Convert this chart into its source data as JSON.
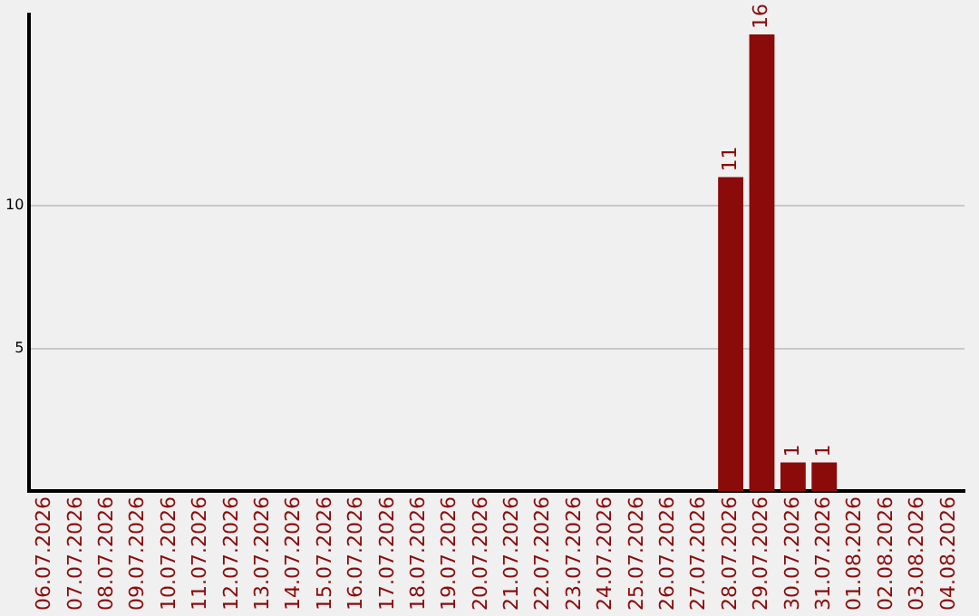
{
  "chart_data": {
    "type": "bar",
    "categories": [
      "06.07.2026",
      "07.07.2026",
      "08.07.2026",
      "09.07.2026",
      "10.07.2026",
      "11.07.2026",
      "12.07.2026",
      "13.07.2026",
      "14.07.2026",
      "15.07.2026",
      "16.07.2026",
      "17.07.2026",
      "18.07.2026",
      "19.07.2026",
      "20.07.2026",
      "21.07.2026",
      "22.07.2026",
      "23.07.2026",
      "24.07.2026",
      "25.07.2026",
      "26.07.2026",
      "27.07.2026",
      "28.07.2026",
      "29.07.2026",
      "30.07.2026",
      "31.07.2026",
      "01.08.2026",
      "02.08.2026",
      "03.08.2026",
      "04.08.2026"
    ],
    "values": [
      0,
      0,
      0,
      0,
      0,
      0,
      0,
      0,
      0,
      0,
      0,
      0,
      0,
      0,
      0,
      0,
      0,
      0,
      0,
      0,
      0,
      0,
      11,
      16,
      1,
      1,
      0,
      0,
      0,
      0
    ],
    "value_labels": [
      null,
      null,
      null,
      null,
      null,
      null,
      null,
      null,
      null,
      null,
      null,
      null,
      null,
      null,
      null,
      null,
      null,
      null,
      null,
      null,
      null,
      null,
      "11",
      "16",
      "1",
      "1",
      null,
      null,
      null,
      null
    ],
    "color": "#8b0a0a",
    "ylim": [
      0,
      16.7
    ],
    "yticks": [
      5,
      10
    ],
    "grid": "y",
    "legend": false
  }
}
